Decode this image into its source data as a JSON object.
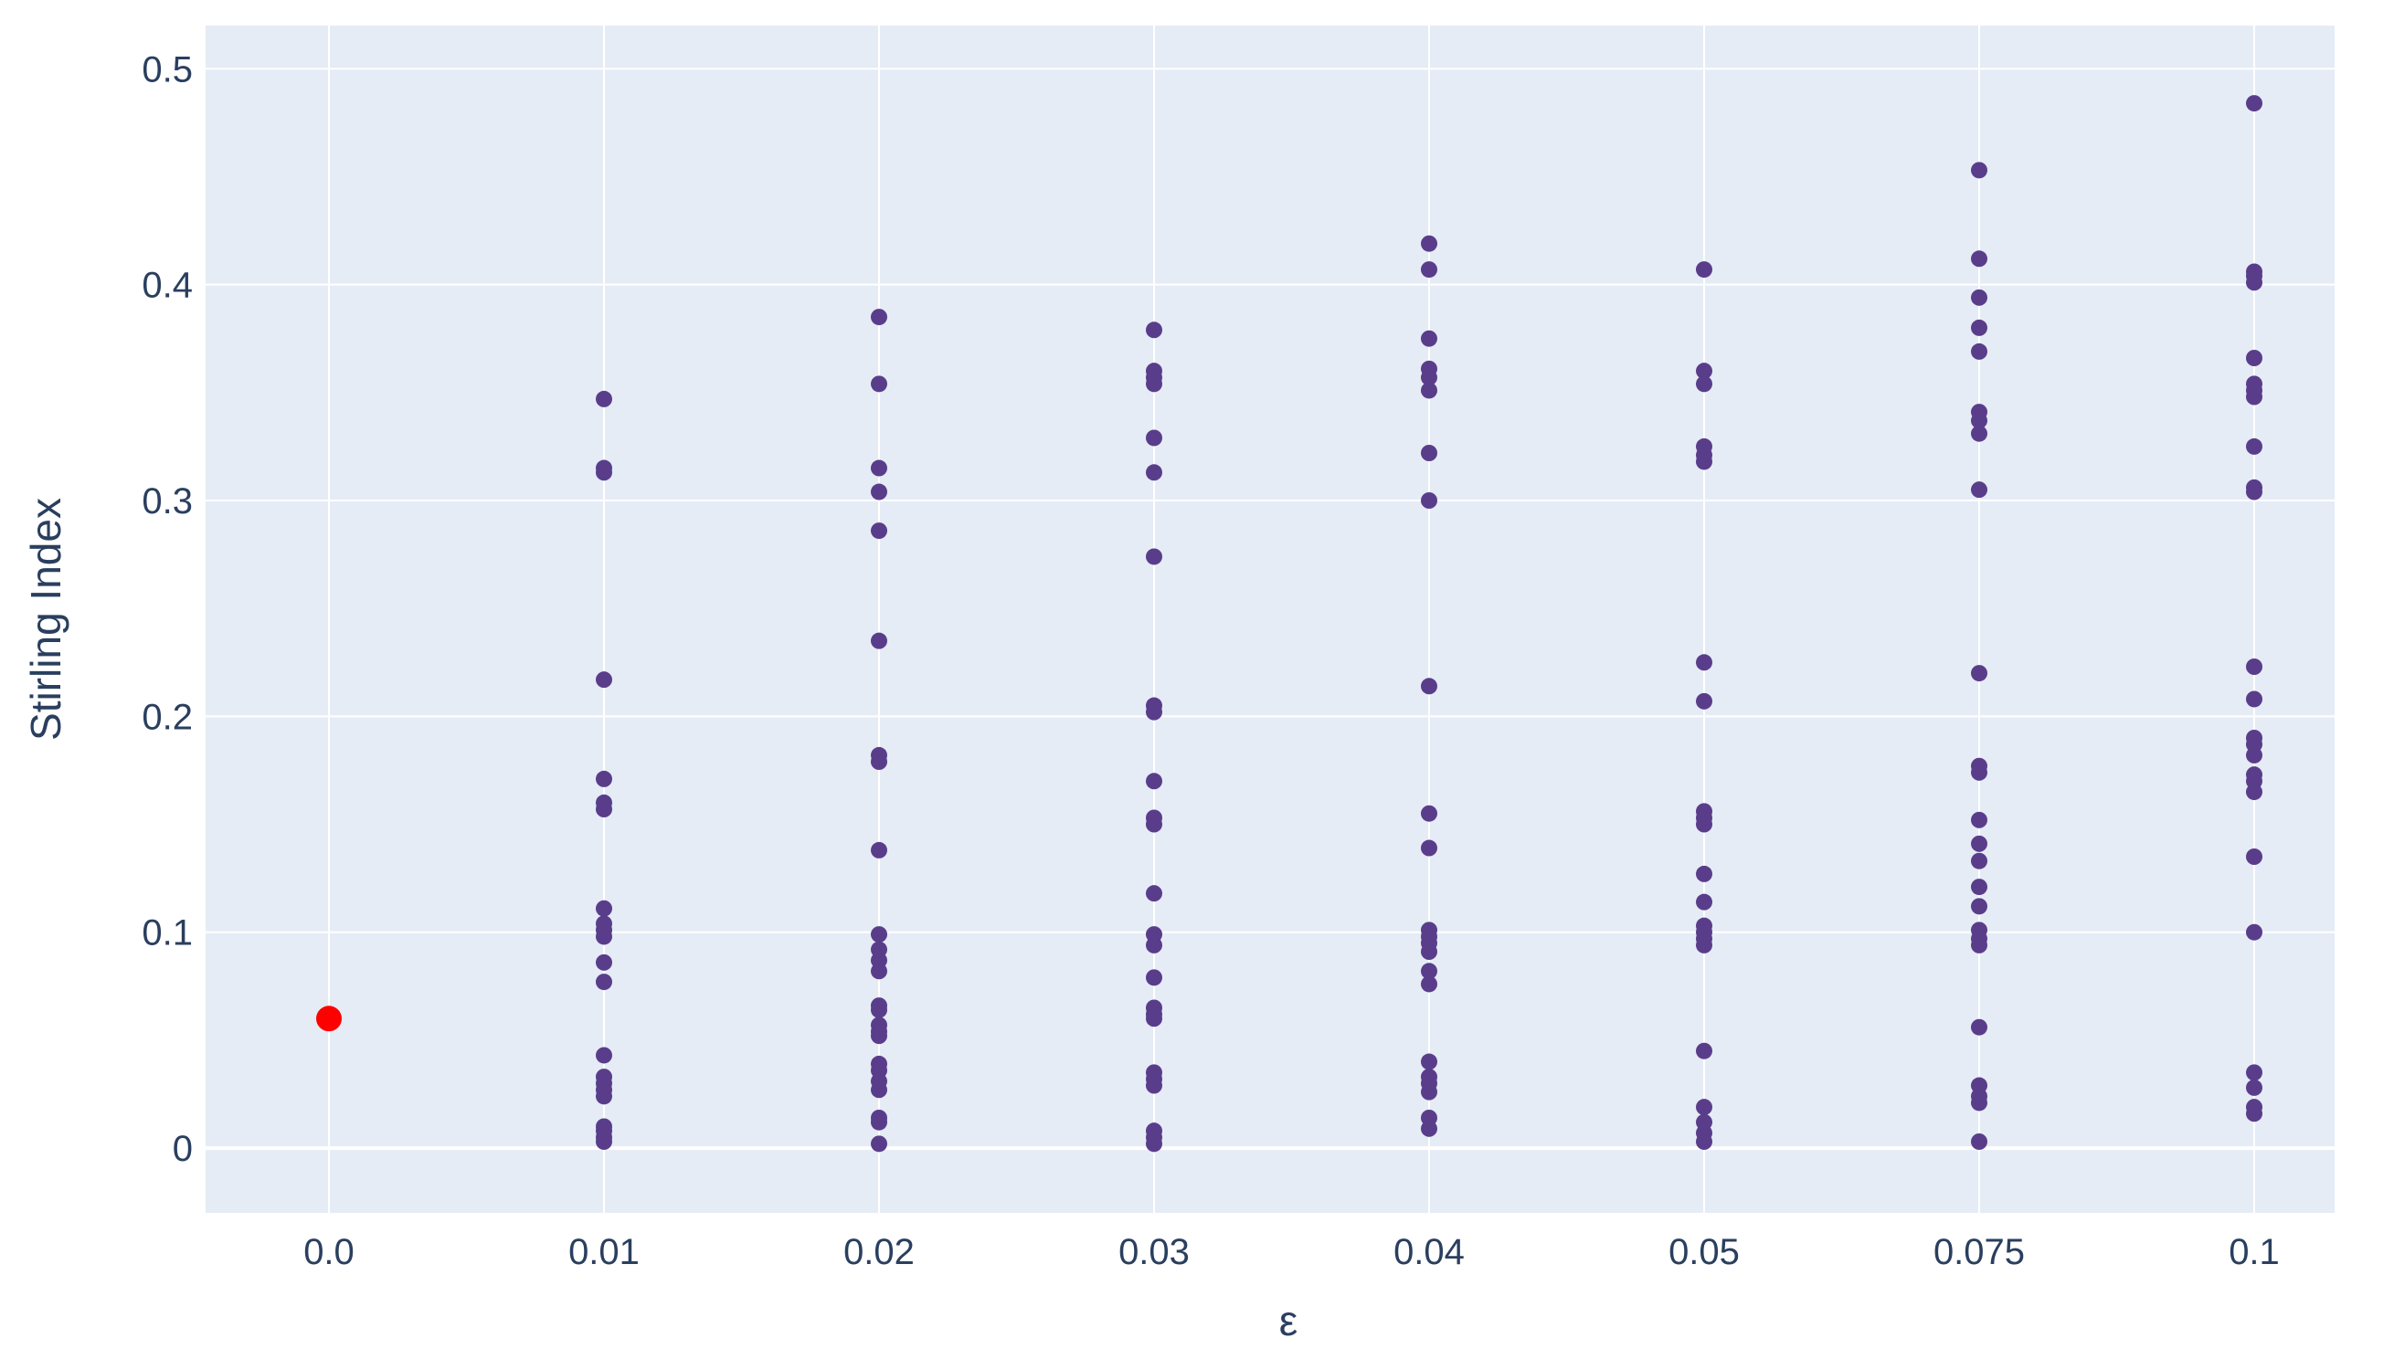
{
  "chart_data": {
    "type": "scatter",
    "title": "",
    "xlabel": "ε",
    "ylabel": "Stirling Index",
    "x_categories": [
      "0.0",
      "0.01",
      "0.02",
      "0.03",
      "0.04",
      "0.05",
      "0.075",
      "0.1"
    ],
    "ylim": [
      -0.03,
      0.52
    ],
    "yticks": [
      0,
      0.1,
      0.2,
      0.3,
      0.4,
      0.5
    ],
    "ytick_labels": [
      "0",
      "0.1",
      "0.2",
      "0.3",
      "0.4",
      "0.5"
    ],
    "grid": true,
    "legend": "none",
    "colors": {
      "plot_bg": "#e5ecf6",
      "grid": "#ffffff",
      "text": "#2a3f5f",
      "series": "#5a3d8a",
      "highlight": "#ff0000"
    },
    "series": [
      {
        "color": "#5a3d8a",
        "points": {
          "0.01": [
            0.347,
            0.315,
            0.313,
            0.217,
            0.171,
            0.16,
            0.157,
            0.111,
            0.104,
            0.101,
            0.098,
            0.086,
            0.077,
            0.043,
            0.033,
            0.03,
            0.027,
            0.024,
            0.01,
            0.008,
            0.005,
            0.003
          ],
          "0.02": [
            0.385,
            0.354,
            0.315,
            0.304,
            0.286,
            0.235,
            0.182,
            0.179,
            0.138,
            0.099,
            0.092,
            0.087,
            0.082,
            0.066,
            0.064,
            0.057,
            0.054,
            0.052,
            0.039,
            0.036,
            0.031,
            0.027,
            0.014,
            0.012,
            0.002
          ],
          "0.03": [
            0.379,
            0.36,
            0.357,
            0.354,
            0.329,
            0.313,
            0.274,
            0.205,
            0.202,
            0.17,
            0.153,
            0.15,
            0.118,
            0.099,
            0.094,
            0.079,
            0.065,
            0.062,
            0.06,
            0.035,
            0.032,
            0.029,
            0.008,
            0.005,
            0.002
          ],
          "0.04": [
            0.419,
            0.407,
            0.375,
            0.361,
            0.357,
            0.351,
            0.322,
            0.3,
            0.214,
            0.155,
            0.139,
            0.101,
            0.098,
            0.095,
            0.091,
            0.082,
            0.076,
            0.04,
            0.033,
            0.03,
            0.026,
            0.014,
            0.009
          ],
          "0.05": [
            0.407,
            0.36,
            0.354,
            0.325,
            0.321,
            0.318,
            0.225,
            0.207,
            0.156,
            0.153,
            0.15,
            0.127,
            0.114,
            0.103,
            0.1,
            0.097,
            0.094,
            0.045,
            0.019,
            0.012,
            0.007,
            0.003
          ],
          "0.075": [
            0.453,
            0.412,
            0.394,
            0.38,
            0.369,
            0.341,
            0.337,
            0.331,
            0.305,
            0.22,
            0.177,
            0.174,
            0.152,
            0.141,
            0.133,
            0.121,
            0.112,
            0.101,
            0.097,
            0.094,
            0.056,
            0.029,
            0.024,
            0.021,
            0.003
          ],
          "0.1": [
            0.484,
            0.406,
            0.404,
            0.401,
            0.366,
            0.354,
            0.351,
            0.348,
            0.325,
            0.306,
            0.304,
            0.223,
            0.208,
            0.19,
            0.187,
            0.182,
            0.173,
            0.17,
            0.165,
            0.135,
            0.1,
            0.035,
            0.028,
            0.019,
            0.016
          ]
        }
      },
      {
        "color": "#ff0000",
        "points": {
          "0.0": [
            0.06
          ]
        }
      }
    ]
  }
}
